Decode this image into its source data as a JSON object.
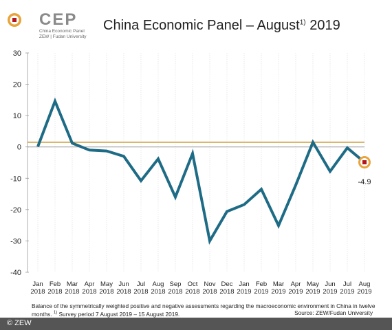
{
  "header": {
    "logo": "CEP",
    "logo_subtitle": "China Economic Panel",
    "logo_affiliation": "ZEW | Fudan University"
  },
  "chart_data": {
    "type": "line",
    "title": "China Economic Panel – August",
    "title_note": "1)",
    "title_year": "2019",
    "categories": [
      "Jan 2018",
      "Feb 2018",
      "Mar 2018",
      "Apr 2018",
      "May 2018",
      "Jun 2018",
      "Jul 2018",
      "Aug 2018",
      "Sep 2018",
      "Oct 2018",
      "Nov 2018",
      "Dec 2018",
      "Jan 2019",
      "Feb 2019",
      "Mar 2019",
      "Apr 2019",
      "May 2019",
      "Jun 2019",
      "Jul 2019",
      "Aug 2019"
    ],
    "series": [
      {
        "color": "#1e6b86",
        "values": [
          0.1,
          14.6,
          1.2,
          -1.0,
          -1.3,
          -3.0,
          -10.8,
          -3.8,
          -16.0,
          -2.1,
          -30.0,
          -20.6,
          -18.4,
          -13.5,
          -25.1,
          -12.2,
          1.5,
          -7.8,
          -0.3,
          -4.9
        ],
        "last_value_label": "-4.9"
      }
    ],
    "reference_line": 1.5,
    "reference_color": "#c8962a",
    "ylim": [
      -40,
      30
    ],
    "yticks": [
      -40,
      -30,
      -20,
      -10,
      0,
      10,
      20,
      30
    ],
    "footnote": "Balance of the symmetrically weighted positive and negative assessments regarding the macroeconomic environment in China in twelve months.",
    "footnote_mark": "1)",
    "footnote_survey": "Survey period 7 August 2019 – 15 August 2019.",
    "source": "Source: ZEW/Fudan University"
  },
  "copyright": "© ZEW"
}
